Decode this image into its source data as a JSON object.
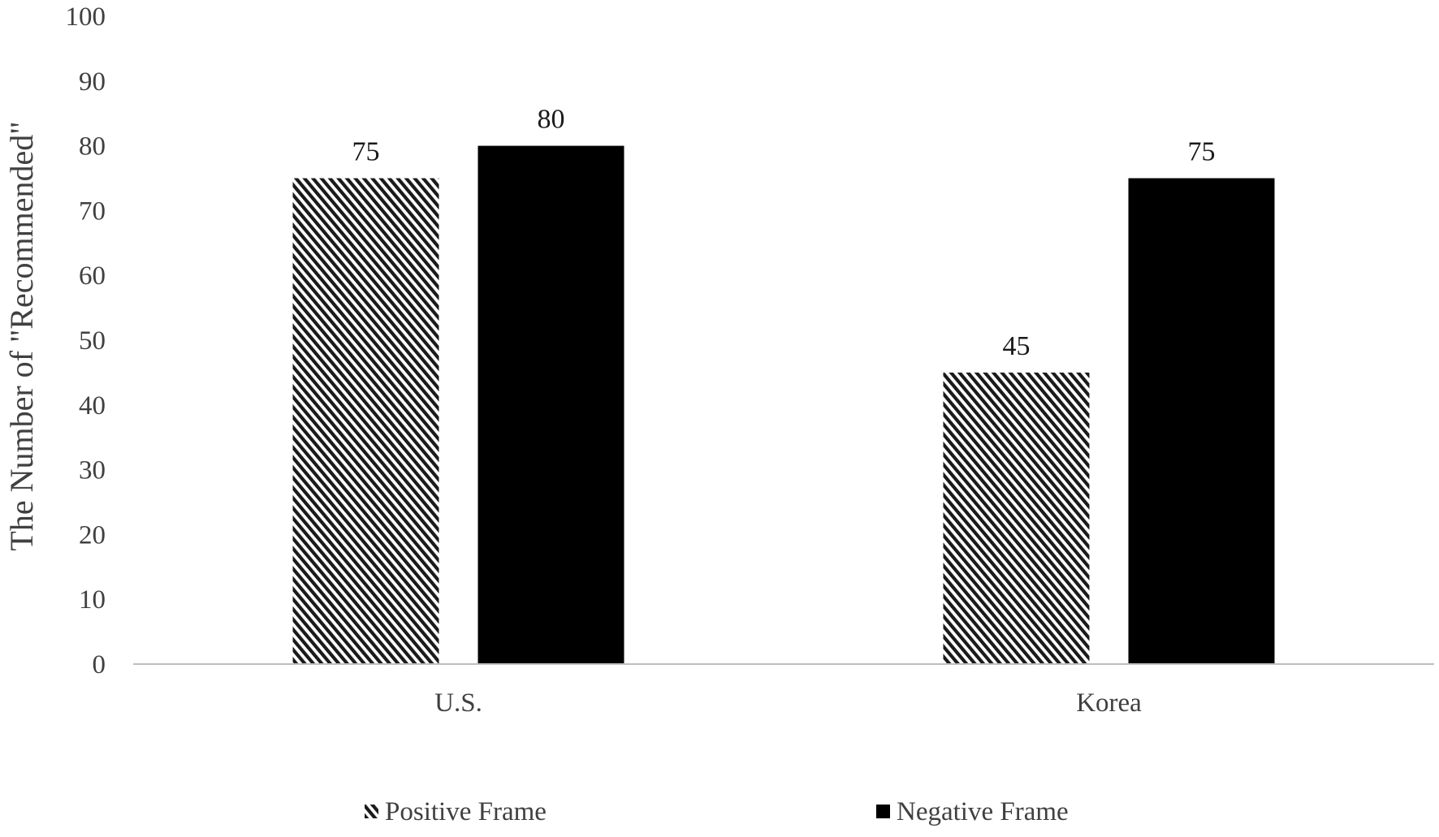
{
  "chart_data": {
    "type": "bar",
    "title": "",
    "xlabel": "",
    "ylabel": "The Number of \"Recommended\"",
    "categories": [
      "U.S.",
      "Korea"
    ],
    "series": [
      {
        "name": "Positive Frame",
        "values": [
          75,
          45
        ],
        "fill": "hatch",
        "color": "#000000"
      },
      {
        "name": "Negative Frame",
        "values": [
          80,
          75
        ],
        "fill": "solid",
        "color": "#000000"
      }
    ],
    "data_labels": true,
    "ylim": [
      0,
      100
    ],
    "yticks": [
      0,
      10,
      20,
      30,
      40,
      50,
      60,
      70,
      80,
      90,
      100
    ],
    "grid": false,
    "legend_position": "bottom"
  }
}
